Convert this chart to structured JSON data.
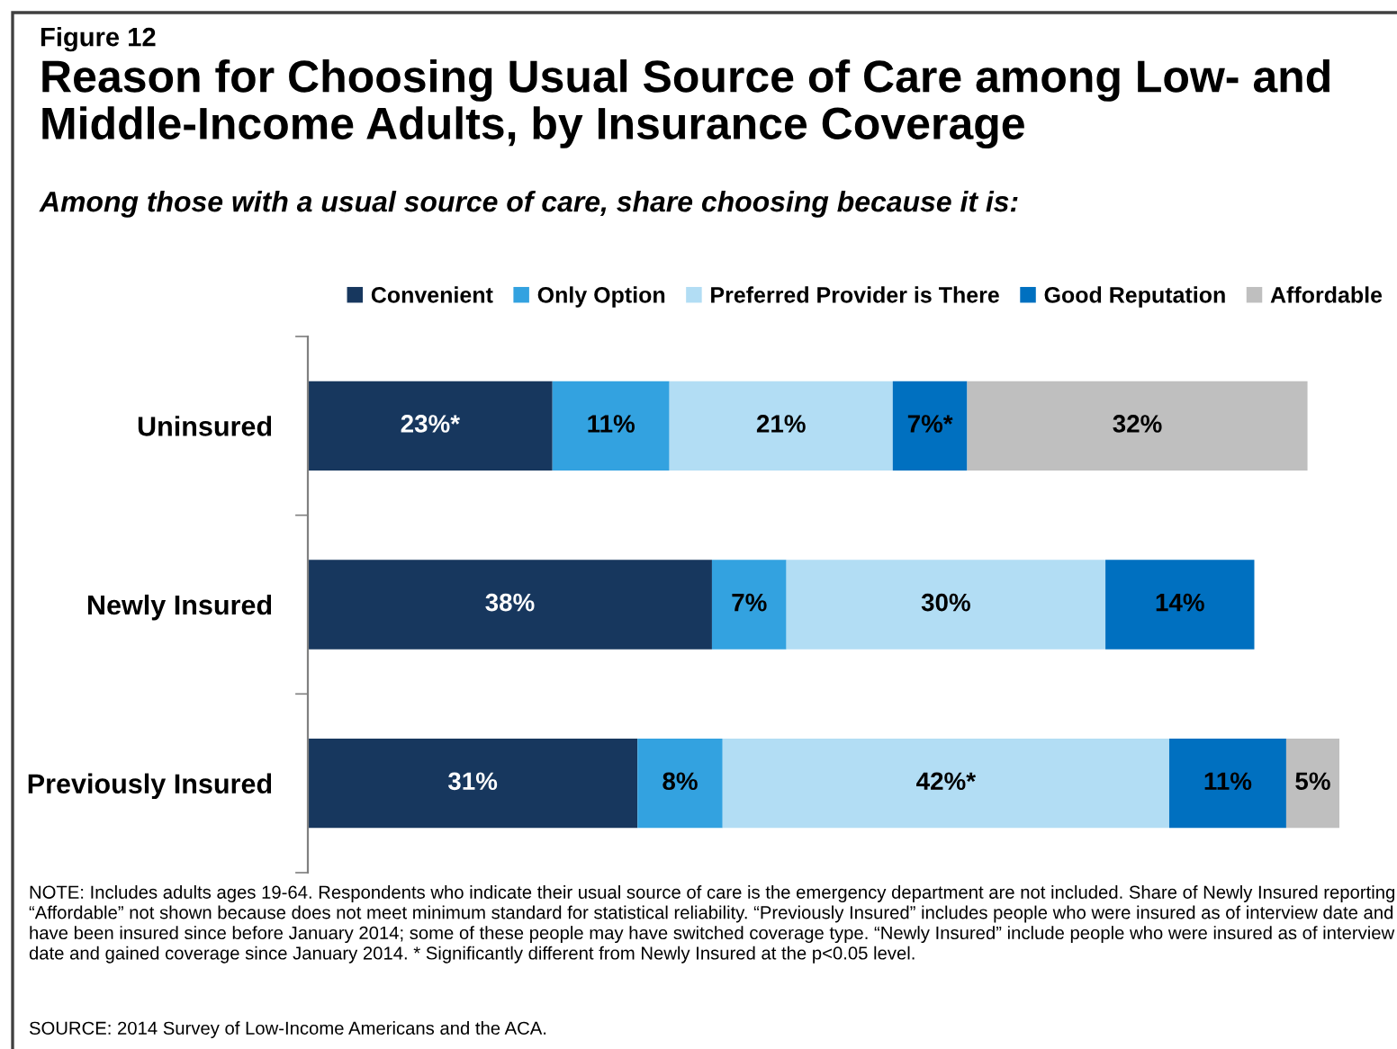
{
  "chart_data": {
    "type": "bar",
    "orientation": "horizontal",
    "stacked": true,
    "title": "Reason for Choosing Usual Source of Care among Low- and Middle-Income Adults, by Insurance Coverage",
    "subtitle": "Among those with a usual source of care, share choosing because it is:",
    "categories": [
      "Uninsured",
      "Newly Insured",
      "Previously Insured"
    ],
    "series": [
      {
        "name": "Convenient",
        "color": "#17375e",
        "values": [
          23,
          38,
          31
        ],
        "value_labels": [
          "23%*",
          "38%",
          "31%"
        ]
      },
      {
        "name": "Only Option",
        "color": "#33a2e0",
        "values": [
          11,
          7,
          8
        ],
        "value_labels": [
          "11%",
          "7%",
          "8%"
        ]
      },
      {
        "name": "Preferred Provider is There",
        "color": "#b2ddf4",
        "values": [
          21,
          30,
          42
        ],
        "value_labels": [
          "21%",
          "30%",
          "42%*"
        ]
      },
      {
        "name": "Good Reputation",
        "color": "#0070c0",
        "values": [
          7,
          14,
          11
        ],
        "value_labels": [
          "7%*",
          "14%",
          "11%"
        ]
      },
      {
        "name": "Affordable",
        "color": "#bfbfbf",
        "values": [
          32,
          null,
          5
        ],
        "value_labels": [
          "32%",
          null,
          "5%"
        ]
      }
    ],
    "legend": "top right",
    "annotations": [
      "Figure 12",
      "NOTE: Includes adults ages 19-64. Respondents who indicate their usual source of care is the emergency department are not included. Share of Newly Insured reporting “Affordable” not shown because does not meet minimum standard for statistical reliability. “Previously Insured” includes people who were insured as of interview date and have been insured since before January 2014; some of these people may have switched coverage type. “Newly Insured” include people who were insured as of interview date and gained coverage since January 2014. * Significantly different from Newly Insured at the p<0.05 level.",
      "SOURCE: 2014 Survey of Low-Income Americans and the ACA."
    ]
  }
}
